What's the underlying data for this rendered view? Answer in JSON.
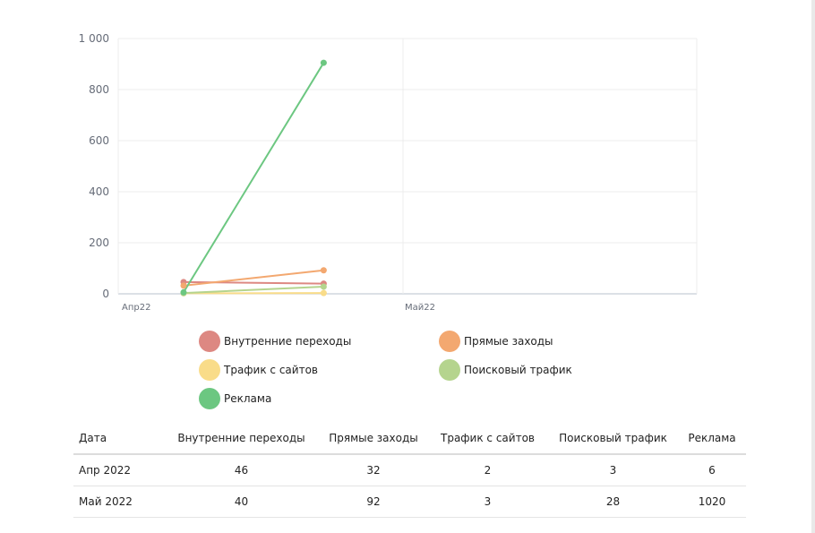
{
  "chart_data": {
    "type": "line",
    "x": [
      "2022-04-15",
      "2022-05-15"
    ],
    "x_ticks": [
      "Апр22",
      "Май22"
    ],
    "y_ticks": [
      "0",
      "200",
      "400",
      "600",
      "800",
      "1 000"
    ],
    "ylim": [
      0,
      1000
    ],
    "grid": true,
    "legend_position": "bottom",
    "series": [
      {
        "name": "Внутренние переходы",
        "color": "#dd8882",
        "values": [
          46,
          40
        ]
      },
      {
        "name": "Прямые заходы",
        "color": "#f3a870",
        "values": [
          32,
          92
        ]
      },
      {
        "name": "Трафик с сайтов",
        "color": "#f9dc89",
        "values": [
          2,
          3
        ]
      },
      {
        "name": "Поисковый трафик",
        "color": "#b5d48e",
        "values": [
          3,
          28
        ]
      },
      {
        "name": "Реклама",
        "color": "#6cc781",
        "values": [
          6,
          1020
        ]
      }
    ]
  },
  "table": {
    "headers": [
      "Дата",
      "Внутренние переходы",
      "Прямые заходы",
      "Трафик с сайтов",
      "Поисковый трафик",
      "Реклама"
    ],
    "rows": [
      [
        "Апр 2022",
        "46",
        "32",
        "2",
        "3",
        "6"
      ],
      [
        "Май 2022",
        "40",
        "92",
        "3",
        "28",
        "1020"
      ]
    ]
  }
}
